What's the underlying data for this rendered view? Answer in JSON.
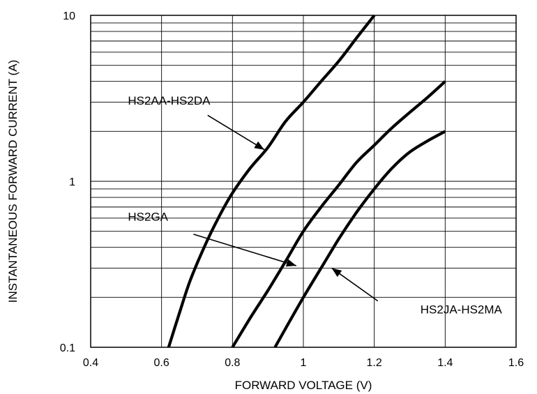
{
  "chart_data": {
    "type": "line",
    "title": "",
    "xlabel": "FORWARD VOLTAGE (V)",
    "ylabel": "INSTANTANEOUS FORWARD CURRENT (A)",
    "xlim": [
      0.4,
      1.6
    ],
    "ylim": [
      0.1,
      10
    ],
    "yscale": "log",
    "grid": true,
    "x_ticks": [
      0.4,
      0.6,
      0.8,
      1.0,
      1.2,
      1.4,
      1.6
    ],
    "x_tick_labels": [
      "0.4",
      "0.6",
      "0.8",
      "1",
      "1.2",
      "1.4",
      "1.6"
    ],
    "y_ticks": [
      0.1,
      1,
      10
    ],
    "y_tick_labels": [
      "0.1",
      "1",
      "10"
    ],
    "series": [
      {
        "name": "HS2AA-HS2DA",
        "x": [
          0.62,
          0.65,
          0.68,
          0.72,
          0.76,
          0.8,
          0.85,
          0.9,
          0.95,
          1.0,
          1.05,
          1.1,
          1.15,
          1.2
        ],
        "y": [
          0.1,
          0.16,
          0.25,
          0.4,
          0.6,
          0.85,
          1.2,
          1.6,
          2.3,
          3.0,
          4.0,
          5.3,
          7.3,
          10.0
        ],
        "annotation": {
          "text": "HS2AA-HS2DA",
          "text_x": 0.505,
          "text_y": 2.9,
          "arrow_from": [
            0.73,
            2.5
          ],
          "arrow_to": [
            0.89,
            1.55
          ]
        }
      },
      {
        "name": "HS2GA",
        "x": [
          0.8,
          0.85,
          0.9,
          0.95,
          1.0,
          1.05,
          1.1,
          1.15,
          1.2,
          1.25,
          1.3,
          1.35,
          1.4
        ],
        "y": [
          0.1,
          0.15,
          0.22,
          0.33,
          0.5,
          0.7,
          0.95,
          1.3,
          1.65,
          2.1,
          2.6,
          3.2,
          4.0
        ],
        "annotation": {
          "text": "HS2GA",
          "text_x": 0.505,
          "text_y": 0.58,
          "arrow_from": [
            0.69,
            0.48
          ],
          "arrow_to": [
            0.98,
            0.31
          ]
        }
      },
      {
        "name": "HS2JA-HS2MA",
        "x": [
          0.92,
          0.95,
          1.0,
          1.05,
          1.1,
          1.15,
          1.2,
          1.25,
          1.3,
          1.35,
          1.4
        ],
        "y": [
          0.1,
          0.13,
          0.2,
          0.3,
          0.45,
          0.65,
          0.9,
          1.2,
          1.5,
          1.75,
          2.0
        ],
        "annotation": {
          "text": "HS2JA-HS2MA",
          "text_x": 1.33,
          "text_y": 0.16,
          "arrow_from": [
            1.21,
            0.19
          ],
          "arrow_to": [
            1.08,
            0.3
          ]
        }
      }
    ]
  }
}
